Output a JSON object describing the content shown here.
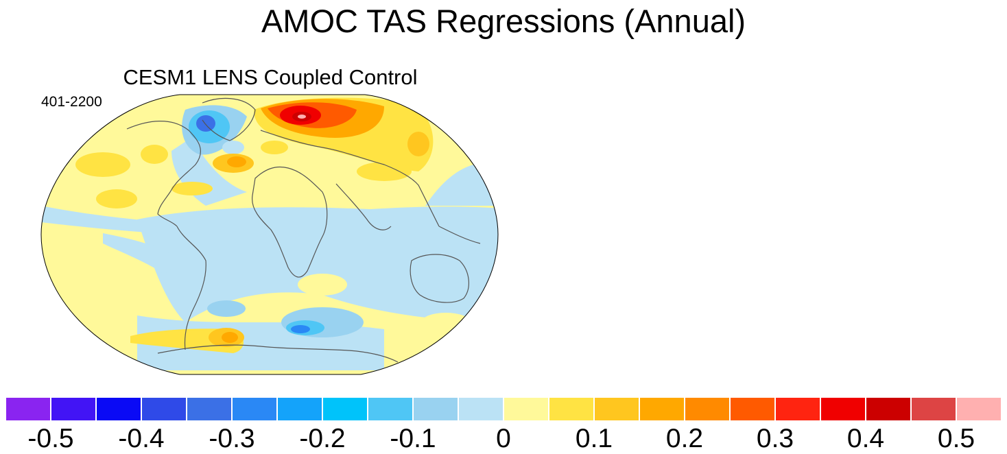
{
  "title": "AMOC TAS Regressions (Annual)",
  "panel": {
    "title": "CESM1 LENS Coupled Control",
    "years": "401-2200"
  },
  "colorbar": {
    "colors": [
      "#8a24f0",
      "#4214f5",
      "#0a0af5",
      "#2f4ae8",
      "#3b70e6",
      "#2a88f5",
      "#14a3fa",
      "#00c3fa",
      "#4fc6f5",
      "#99d2f0",
      "#bbe2f5",
      "#fff99a",
      "#ffe343",
      "#ffc61f",
      "#ffa800",
      "#ff8a00",
      "#ff5a00",
      "#ff2410",
      "#f00000",
      "#cc0000",
      "#dd4444",
      "#ffb0b0"
    ],
    "tick_labels": [
      "-0.5",
      "-0.4",
      "-0.3",
      "-0.2",
      "-0.1",
      "0",
      "0.1",
      "0.2",
      "0.3",
      "0.4",
      "0.5"
    ]
  }
}
